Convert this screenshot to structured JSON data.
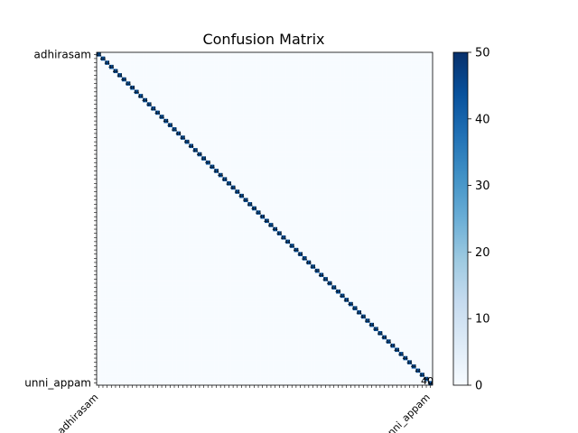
{
  "chart_data": {
    "type": "heatmap",
    "title": "Confusion Matrix",
    "xlabel": "",
    "ylabel": "",
    "n_classes": 80,
    "class_label_samples": [
      "adhirasam",
      "unni_appam"
    ],
    "diagonal_annotation_example": "40",
    "value_range": [
      0,
      50
    ],
    "off_diagonal_value": 0,
    "typical_diagonal_value": 44,
    "colormap": [
      "#f7fbff",
      "#deebf7",
      "#c6dbef",
      "#9ecae1",
      "#6baed6",
      "#4292c6",
      "#2171b5",
      "#08519c",
      "#08306b"
    ],
    "colorbar": {
      "ticks": [
        0,
        10,
        20,
        30,
        40,
        50
      ],
      "tick_labels": [
        "0",
        "10",
        "20",
        "30",
        "40",
        "50"
      ]
    },
    "grid": false
  }
}
